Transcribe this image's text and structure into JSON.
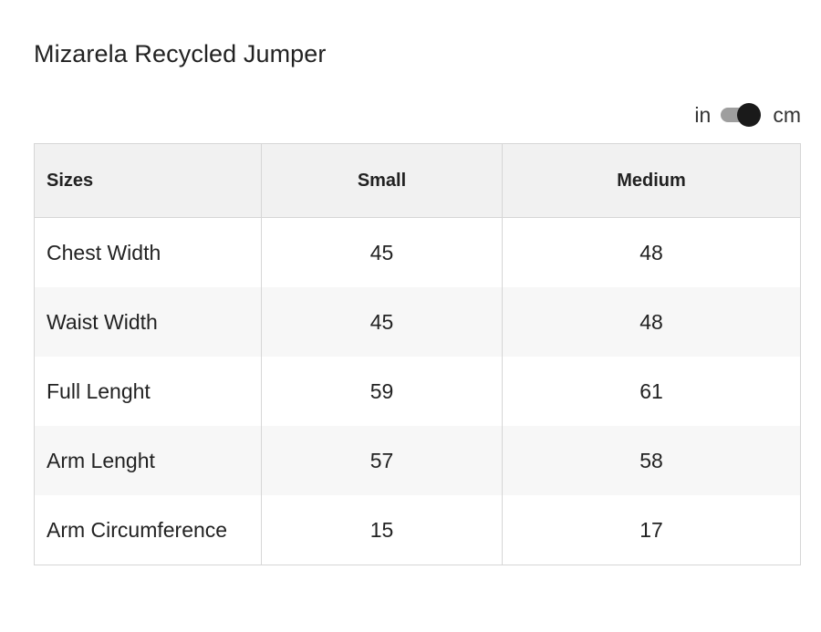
{
  "product": {
    "title": "Mizarela Recycled Jumper"
  },
  "unit_toggle": {
    "left_label": "in",
    "right_label": "cm",
    "selected": "cm"
  },
  "size_table": {
    "header": {
      "label": "Sizes",
      "columns": [
        "Small",
        "Medium"
      ]
    },
    "rows": [
      {
        "label": "Chest Width",
        "values": [
          "45",
          "48"
        ]
      },
      {
        "label": "Waist Width",
        "values": [
          "45",
          "48"
        ]
      },
      {
        "label": "Full Lenght",
        "values": [
          "59",
          "61"
        ]
      },
      {
        "label": "Arm Lenght",
        "values": [
          "57",
          "58"
        ]
      },
      {
        "label": "Arm Circumference",
        "values": [
          "15",
          "17"
        ]
      }
    ]
  },
  "colors": {
    "header_bg": "#f1f1f1",
    "stripe_bg": "#f7f7f7",
    "border": "#d6d6d6",
    "toggle_knob": "#1a1a1a",
    "toggle_track": "#9e9e9e"
  }
}
